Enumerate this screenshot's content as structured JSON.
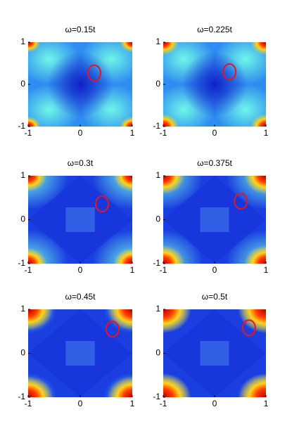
{
  "chart_data": [
    {
      "type": "heatmap",
      "title": "ω=0.15t",
      "xlim": [
        -1,
        1
      ],
      "ylim": [
        -1,
        1
      ],
      "xticks": [
        -1,
        0,
        1
      ],
      "yticks": [
        -1,
        0,
        1
      ],
      "highlight": {
        "x": 0.27,
        "y": 0.27,
        "color": "#e8141b"
      }
    },
    {
      "type": "heatmap",
      "title": "ω=0.225t",
      "xlim": [
        -1,
        1
      ],
      "ylim": [
        -1,
        1
      ],
      "xticks": [
        -1,
        0,
        1
      ],
      "yticks": [
        -1,
        0,
        1
      ],
      "highlight": {
        "x": 0.29,
        "y": 0.3,
        "color": "#e8141b"
      }
    },
    {
      "type": "heatmap",
      "title": "ω=0.3t",
      "xlim": [
        -1,
        1
      ],
      "ylim": [
        -1,
        1
      ],
      "xticks": [
        -1,
        0,
        1
      ],
      "yticks": [
        -1,
        0,
        1
      ],
      "highlight": {
        "x": 0.42,
        "y": 0.36,
        "color": "#e8141b"
      }
    },
    {
      "type": "heatmap",
      "title": "ω=0.375t",
      "xlim": [
        -1,
        1
      ],
      "ylim": [
        -1,
        1
      ],
      "xticks": [
        -1,
        0,
        1
      ],
      "yticks": [
        -1,
        0,
        1
      ],
      "highlight": {
        "x": 0.51,
        "y": 0.42,
        "color": "#e8141b"
      }
    },
    {
      "type": "heatmap",
      "title": "ω=0.45t",
      "xlim": [
        -1,
        1
      ],
      "ylim": [
        -1,
        1
      ],
      "xticks": [
        -1,
        0,
        1
      ],
      "yticks": [
        -1,
        0,
        1
      ],
      "highlight": {
        "x": 0.62,
        "y": 0.55,
        "color": "#e8141b"
      }
    },
    {
      "type": "heatmap",
      "title": "ω=0.5t",
      "xlim": [
        -1,
        1
      ],
      "ylim": [
        -1,
        1
      ],
      "xticks": [
        -1,
        0,
        1
      ],
      "yticks": [
        -1,
        0,
        1
      ],
      "highlight": {
        "x": 0.67,
        "y": 0.58,
        "color": "#e8141b"
      }
    }
  ]
}
